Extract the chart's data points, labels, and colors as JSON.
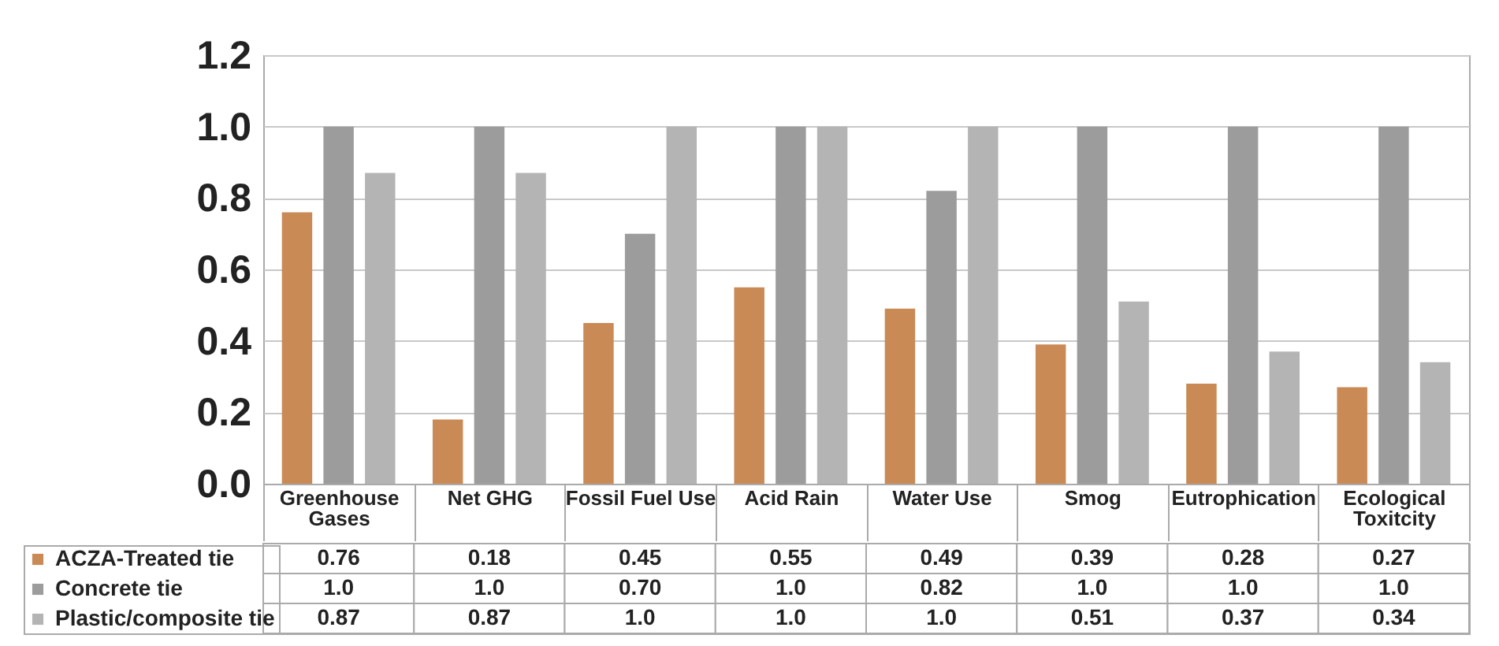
{
  "chart_data": {
    "type": "bar",
    "categories": [
      "Greenhouse Gases",
      "Net GHG",
      "Fossil Fuel Use",
      "Acid Rain",
      "Water Use",
      "Smog",
      "Eutrophication",
      "Ecological Toxitcity"
    ],
    "series": [
      {
        "name": "ACZA-Treated tie",
        "color": "#c98a55",
        "values": [
          0.76,
          0.18,
          0.45,
          0.55,
          0.49,
          0.39,
          0.28,
          0.27
        ],
        "value_labels": [
          "0.76",
          "0.18",
          "0.45",
          "0.55",
          "0.49",
          "0.39",
          "0.28",
          "0.27"
        ]
      },
      {
        "name": "Concrete tie",
        "color": "#9c9c9c",
        "values": [
          1.0,
          1.0,
          0.7,
          1.0,
          0.82,
          1.0,
          1.0,
          1.0
        ],
        "value_labels": [
          "1.0",
          "1.0",
          "0.70",
          "1.0",
          "0.82",
          "1.0",
          "1.0",
          "1.0"
        ]
      },
      {
        "name": "Plastic/composite tie",
        "color": "#b4b4b4",
        "values": [
          0.87,
          0.87,
          1.0,
          1.0,
          1.0,
          0.51,
          0.37,
          0.34
        ],
        "value_labels": [
          "0.87",
          "0.87",
          "1.0",
          "1.0",
          "1.0",
          "0.51",
          "0.37",
          "0.34"
        ]
      }
    ],
    "ylim": [
      0,
      1.2
    ],
    "yticks": [
      {
        "value": 0,
        "label": "0.0"
      },
      {
        "value": 0.2,
        "label": "0.2"
      },
      {
        "value": 0.4,
        "label": "0.4"
      },
      {
        "value": 0.6,
        "label": "0.6"
      },
      {
        "value": 0.8,
        "label": "0.8"
      },
      {
        "value": 1.0,
        "label": "1.0"
      },
      {
        "value": 1.2,
        "label": "1.2"
      }
    ],
    "grid": "y",
    "legend": "bottom left"
  }
}
